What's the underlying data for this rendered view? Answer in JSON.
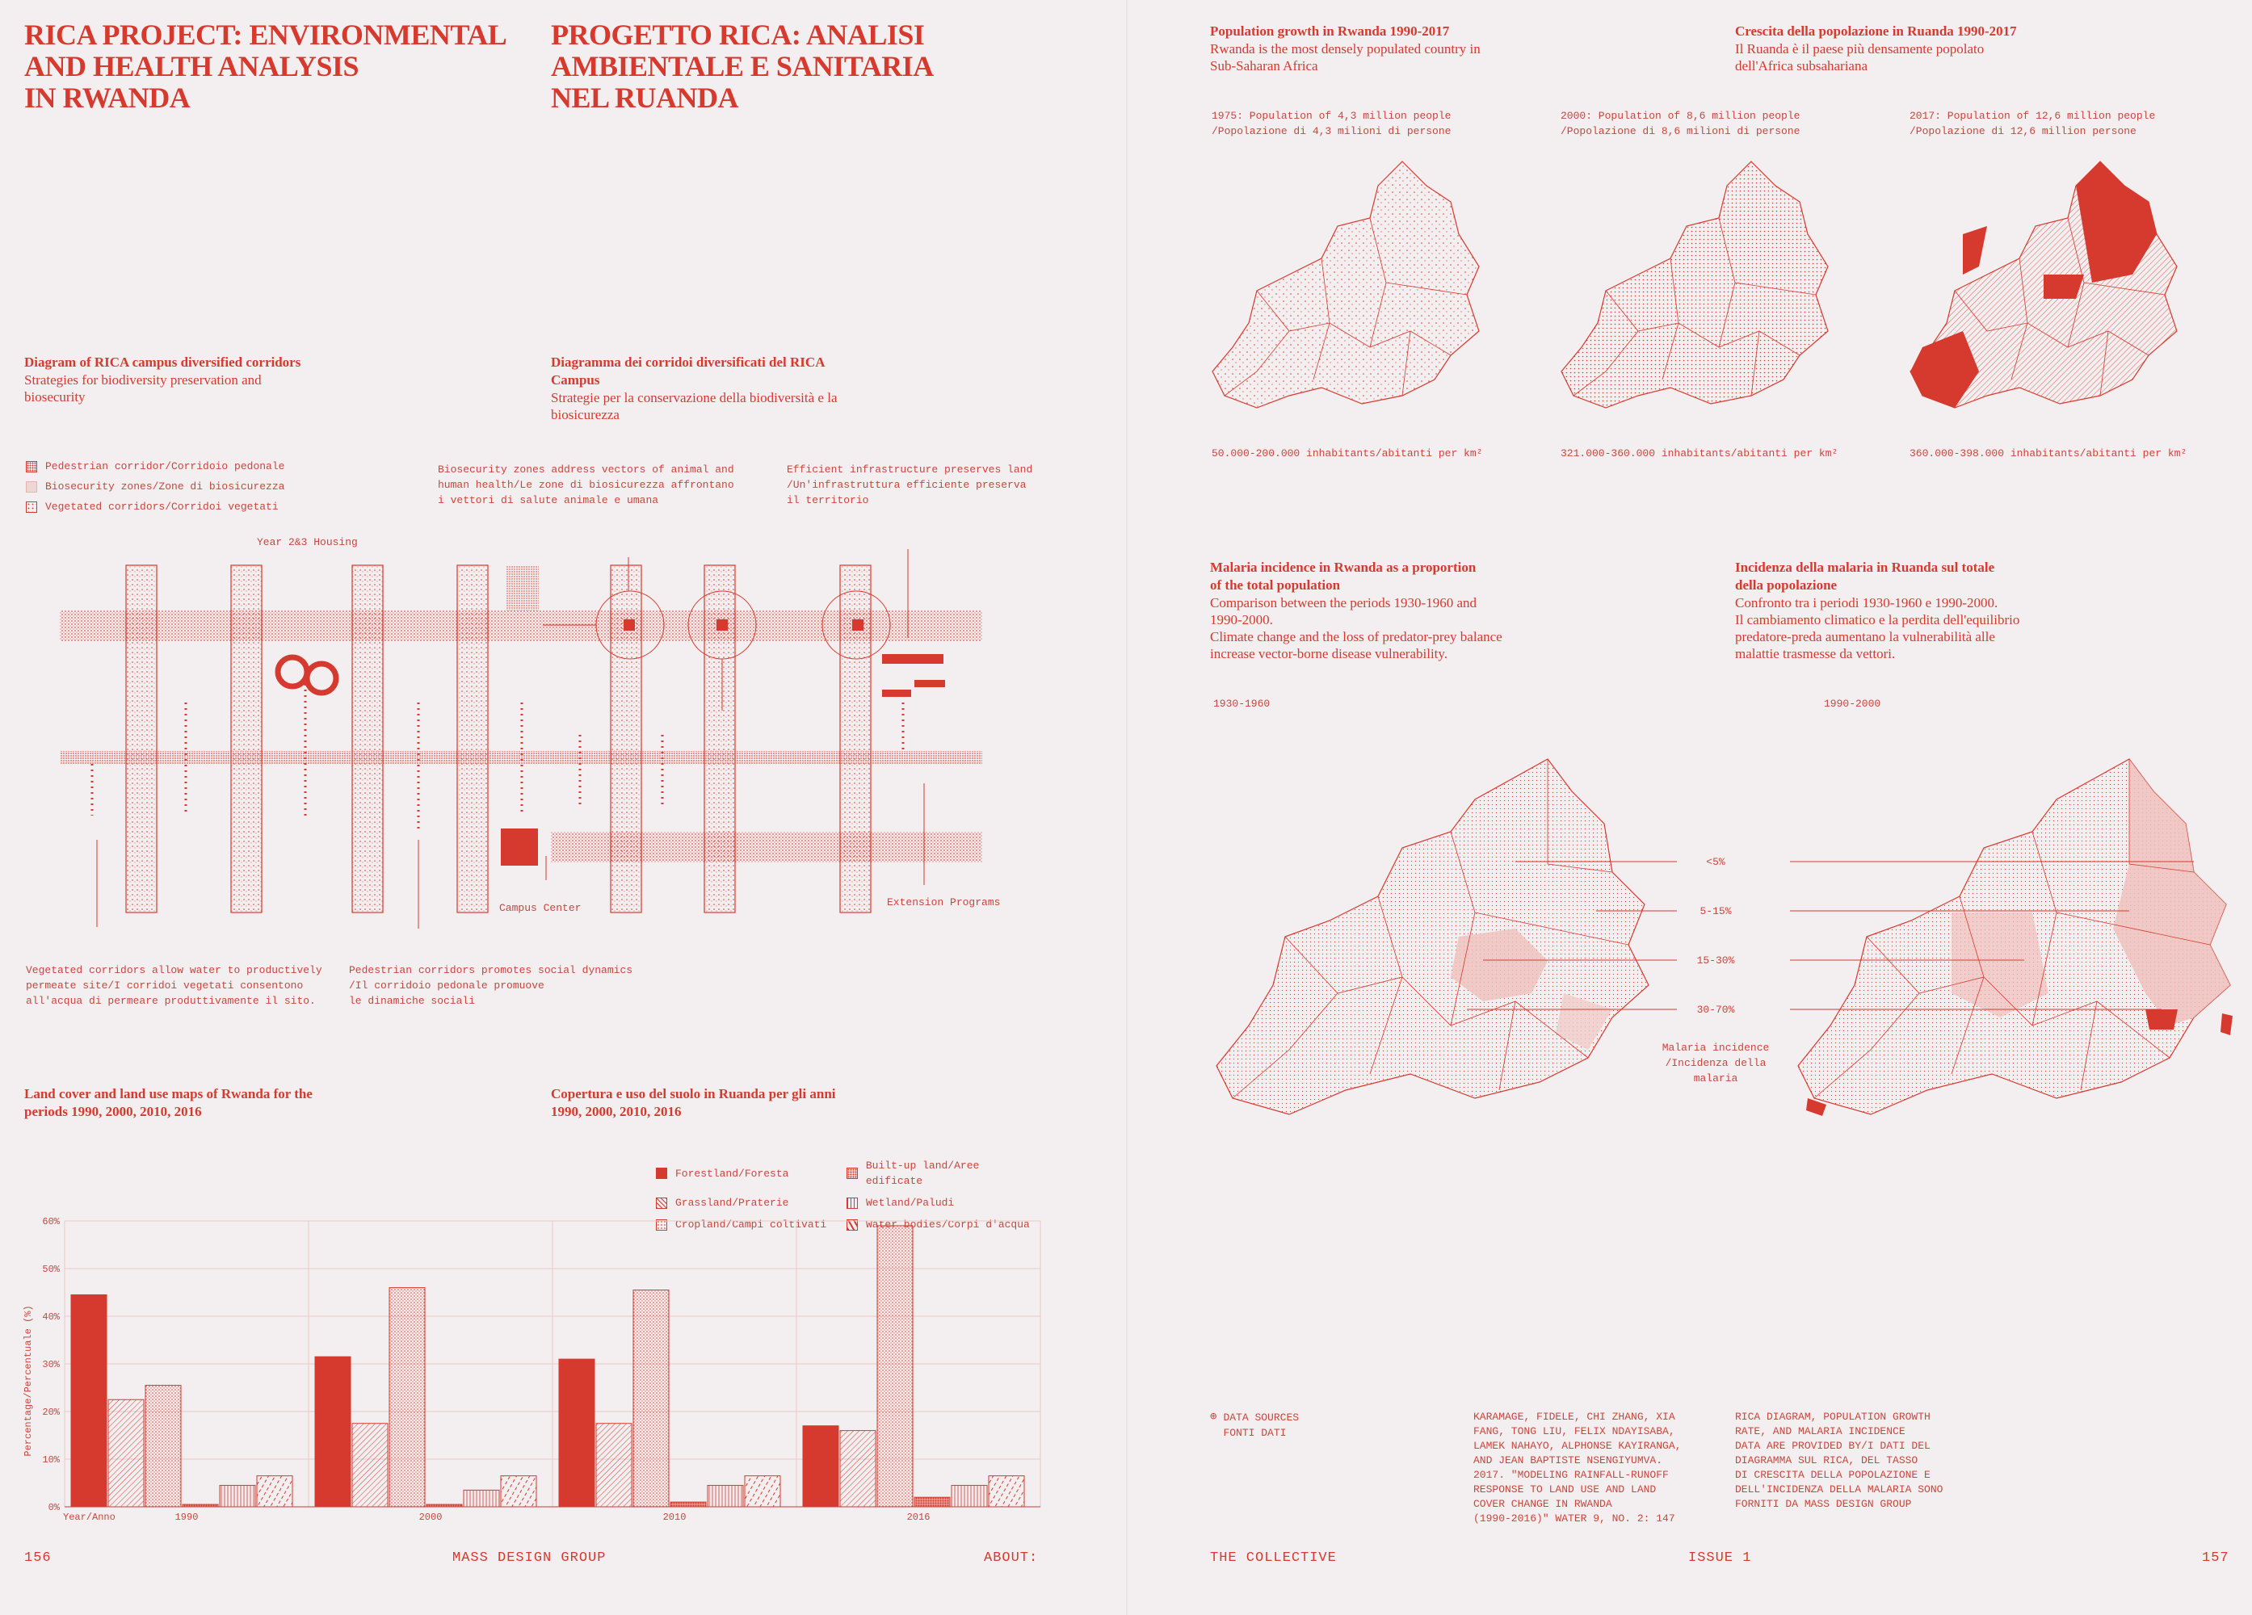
{
  "left": {
    "title_en": [
      "RICA PROJECT: ENVIRONMENTAL",
      "AND HEALTH ANALYSIS",
      "IN RWANDA"
    ],
    "title_it": [
      "PROGETTO RICA: ANALISI",
      "AMBIENTALE E SANITARIA",
      "NEL RUANDA"
    ],
    "diagram": {
      "title_en": "Diagram of RICA campus diversified corridors",
      "sub_en": [
        "Strategies for biodiversity preservation and",
        "biosecurity"
      ],
      "title_it": [
        "Diagramma dei corridoi diversificati del RICA",
        "Campus"
      ],
      "sub_it": [
        "Strategie per la conservazione della biodiversità e la",
        "biosicurezza"
      ],
      "legend": [
        "Pedestrian corridor/Corridoio pedonale",
        "Biosecurity zones/Zone di biosicurezza",
        "Vegetated corridors/Corridoi vegetati"
      ],
      "note_biosecurity": [
        "Biosecurity zones address vectors of animal and",
        "human health/Le zone di biosicurezza affrontano",
        "i vettori di salute animale e umana"
      ],
      "note_infra": [
        "Efficient infrastructure preserves land",
        "/Un'infrastruttura efficiente preserva",
        "il territorio"
      ],
      "label_housing": "Year 2&3 Housing",
      "label_campus": "Campus Center",
      "label_extension": "Extension Programs",
      "note_vegetated": [
        "Vegetated corridors allow water to productively",
        "permeate site/I corridoi vegetati consentono",
        "all'acqua di permeare produttivamente il sito."
      ],
      "note_pedestrian": [
        "Pedestrian corridors promotes social dynamics",
        "/Il corridoio pedonale promuove",
        "le dinamiche sociali"
      ]
    },
    "landcover": {
      "title_en": [
        "Land cover and land use maps of Rwanda for the",
        "periods 1990, 2000, 2010, 2016"
      ],
      "title_it": [
        "Copertura e uso del suolo in Ruanda per gli anni",
        "1990, 2000, 2010, 2016"
      ]
    },
    "footer": {
      "page": "156",
      "center": "MASS DESIGN GROUP",
      "right": "ABOUT:"
    }
  },
  "right": {
    "pop": {
      "title_en": "Population growth in Rwanda 1990-2017",
      "sub_en": [
        "Rwanda is the most densely populated country in",
        "Sub-Saharan Africa"
      ],
      "title_it": "Crescita della popolazione in Ruanda 1990-2017",
      "sub_it": [
        "Il Ruanda è il paese più densamente popolato",
        "dell'Africa subsahariana"
      ],
      "maps": [
        {
          "caption": [
            "1975: Population of 4,3 million people",
            "/Popolazione di 4,3 milioni di persone"
          ],
          "density": "50.000-200.000 inhabitants/abitanti per km²"
        },
        {
          "caption": [
            "2000: Population of 8,6 million people",
            "/Popolazione di 8,6 milioni di persone"
          ],
          "density": "321.000-360.000 inhabitants/abitanti per km²"
        },
        {
          "caption": [
            "2017: Population of 12,6 million people",
            "/Popolazione di 12,6 million persone"
          ],
          "density": "360.000-398.000 inhabitants/abitanti per km²"
        }
      ]
    },
    "malaria": {
      "title_en": [
        "Malaria incidence in Rwanda as a proportion",
        "of the total population"
      ],
      "sub_en": [
        "Comparison between the periods 1930-1960 and",
        "1990-2000.",
        "Climate change and the loss of predator-prey balance",
        "increase vector-borne disease vulnerability."
      ],
      "title_it": [
        "Incidenza della malaria in Ruanda sul totale",
        "della popolazione"
      ],
      "sub_it": [
        "Confronto tra i periodi 1930-1960 e 1990-2000.",
        "Il cambiamento climatico e la perdita dell'equilibrio",
        "predatore-preda aumentano la vulnerabilità alle",
        "malattie trasmesse da vettori."
      ],
      "period_a": "1930-1960",
      "period_b": "1990-2000",
      "levels": [
        "<5%",
        "5-15%",
        "15-30%",
        "30-70%"
      ],
      "legend_title": [
        "Malaria incidence",
        "/Incidenza della",
        "malaria"
      ]
    },
    "sources": {
      "label": [
        "DATA SOURCES",
        "FONTI DATI"
      ],
      "ref": [
        "KARAMAGE, FIDELE, CHI ZHANG, XIA",
        "FANG, TONG LIU, FELIX NDAYISABA,",
        "LAMEK NAHAYO, ALPHONSE KAYIRANGA,",
        "AND JEAN BAPTISTE NSENGIYUMVA.",
        "2017. \"MODELING RAINFALL-RUNOFF",
        "RESPONSE TO LAND USE AND LAND",
        "COVER CHANGE IN RWANDA",
        "(1990-2016)\" WATER 9, NO. 2: 147"
      ],
      "note": [
        "RICA DIAGRAM, POPULATION GROWTH",
        "RATE, AND MALARIA INCIDENCE",
        "DATA ARE PROVIDED BY/I DATI DEL",
        "DIAGRAMMA SUL RICA, DEL TASSO",
        "DI CRESCITA DELLA POPOLAZIONE E",
        "DELL'INCIDENZA DELLA MALARIA SONO",
        "FORNITI DA MASS DESIGN GROUP"
      ]
    },
    "footer": {
      "left": "THE COLLECTIVE",
      "center": "ISSUE 1",
      "page": "157"
    }
  },
  "chart_data": {
    "type": "bar",
    "title": "",
    "xlabel": "Year/Anno",
    "ylabel": "Percentage/Percentuale (%)",
    "ylim": [
      0,
      60
    ],
    "yticks": [
      "0%",
      "10%",
      "20%",
      "30%",
      "40%",
      "50%",
      "60%"
    ],
    "categories": [
      "1990",
      "2000",
      "2010",
      "2016"
    ],
    "legend": [
      "Forestland/Foresta",
      "Grassland/Praterie",
      "Cropland/Campi coltivati",
      "Built-up land/Aree edificate",
      "Wetland/Paludi",
      "Water bodies/Corpi d'acqua"
    ],
    "series": [
      {
        "name": "Forestland/Foresta",
        "pattern": "solid",
        "values": [
          44.5,
          31.5,
          31,
          17
        ]
      },
      {
        "name": "Grassland/Praterie",
        "pattern": "hatch",
        "values": [
          22.5,
          17.5,
          17.5,
          16
        ]
      },
      {
        "name": "Cropland/Campi coltivati",
        "pattern": "dots",
        "values": [
          25.5,
          46,
          45.5,
          59
        ]
      },
      {
        "name": "Built-up land/Aree edificate",
        "pattern": "dense",
        "values": [
          0.5,
          0.5,
          1,
          2
        ]
      },
      {
        "name": "Wetland/Paludi",
        "pattern": "wet",
        "values": [
          4.5,
          3.5,
          4.5,
          4.5
        ]
      },
      {
        "name": "Water bodies/Corpi d'acqua",
        "pattern": "water",
        "values": [
          6.5,
          6.5,
          6.5,
          6.5
        ]
      }
    ]
  },
  "colors": {
    "accent": "#d63a2e",
    "paper": "#f3eeef",
    "pale": "#efd6d5"
  }
}
